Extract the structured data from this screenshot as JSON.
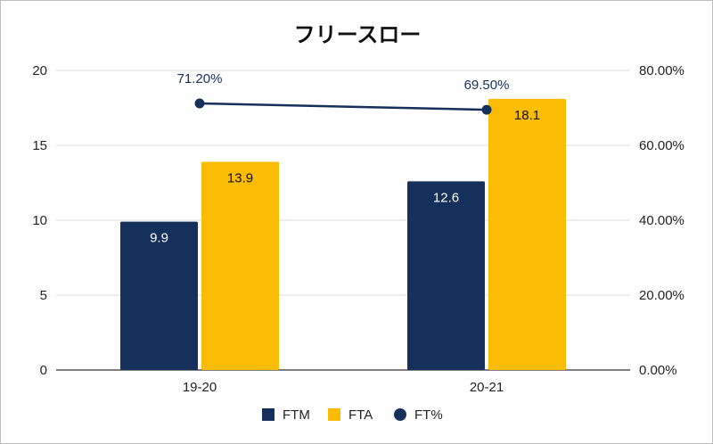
{
  "chart_data": {
    "type": "bar",
    "title": "フリースロー",
    "categories": [
      "19-20",
      "20-21"
    ],
    "series": [
      {
        "name": "FTM",
        "type": "bar",
        "axis": "left",
        "color": "#15305a",
        "values": [
          9.9,
          12.6
        ],
        "labels": [
          "9.9",
          "12.6"
        ],
        "label_color": "#ffffff"
      },
      {
        "name": "FTA",
        "type": "bar",
        "axis": "left",
        "color": "#fbbc04",
        "values": [
          13.9,
          18.1
        ],
        "labels": [
          "13.9",
          "18.1"
        ],
        "label_color": "#111111"
      },
      {
        "name": "FT%",
        "type": "line",
        "axis": "right",
        "color": "#15305a",
        "values": [
          71.2,
          69.5
        ],
        "labels": [
          "71.20%",
          "69.50%"
        ],
        "label_color": "#15305a"
      }
    ],
    "y_left": {
      "min": 0,
      "max": 20,
      "ticks": [
        "0",
        "5",
        "10",
        "15",
        "20"
      ],
      "tick_values": [
        0,
        5,
        10,
        15,
        20
      ]
    },
    "y_right": {
      "min": 0,
      "max": 80,
      "ticks": [
        "0.00%",
        "20.00%",
        "40.00%",
        "60.00%",
        "80.00%"
      ],
      "tick_values": [
        0,
        20,
        40,
        60,
        80
      ]
    },
    "grid": true,
    "legend_position": "bottom"
  }
}
